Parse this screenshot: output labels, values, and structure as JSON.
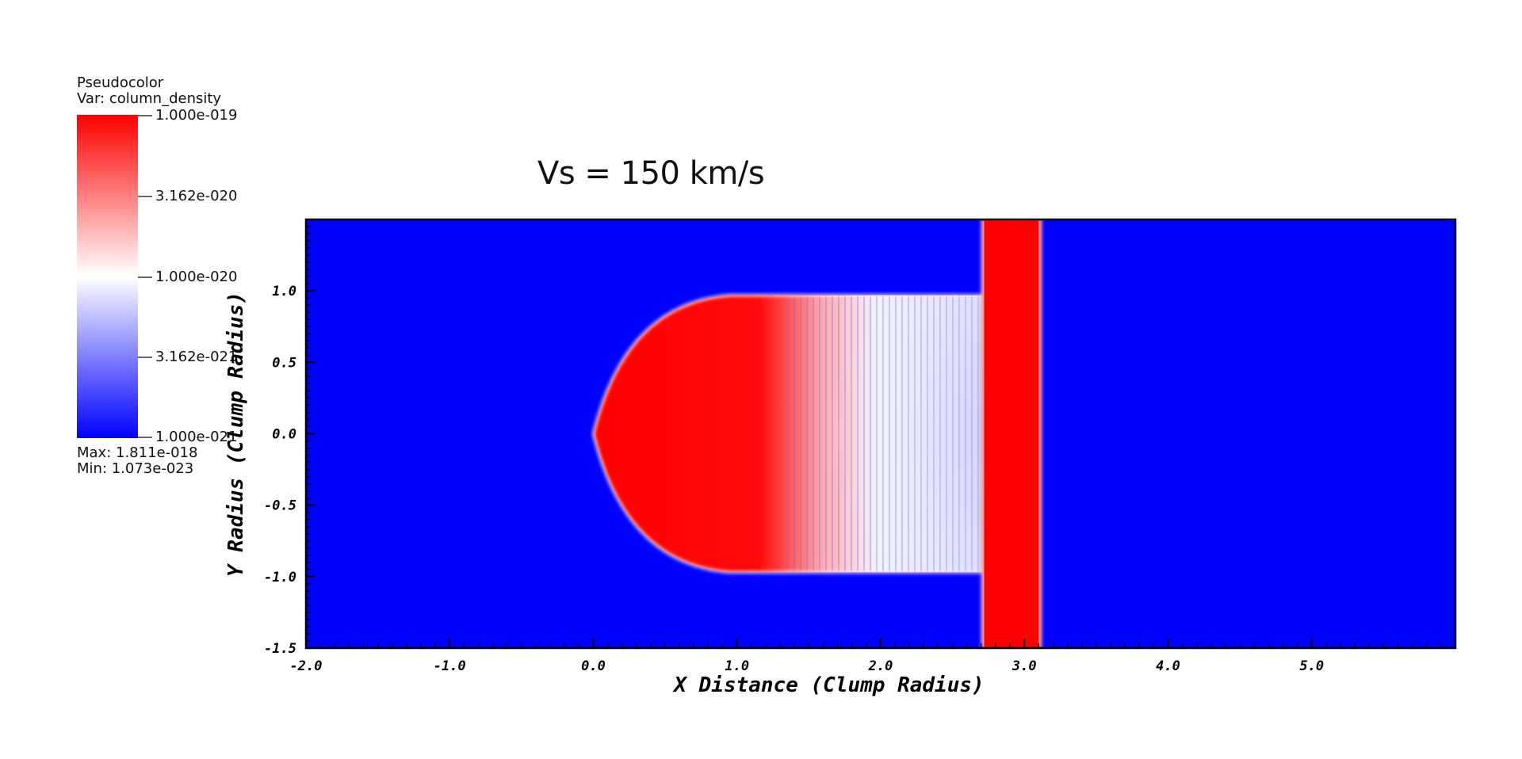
{
  "legend": {
    "title": "Pseudocolor",
    "var": "Var: column_density",
    "ticks": [
      "1.000e-019",
      "3.162e-020",
      "1.000e-020",
      "3.162e-021",
      "1.000e-021"
    ],
    "max": "Max:  1.811e-018",
    "min": "Min:  1.073e-023",
    "colors": {
      "high": "#ff0000",
      "mid": "#ffffff",
      "low": "#0000ff"
    }
  },
  "chart_data": {
    "type": "heatmap",
    "title": "Vs = 150 km/s",
    "xlabel": "X Distance (Clump Radius)",
    "ylabel": "Y Radius (Clump Radius)",
    "xlim": [
      -2.0,
      6.0
    ],
    "ylim": [
      -1.5,
      1.5
    ],
    "xticks": [
      "-2.0",
      "-1.0",
      "0.0",
      "1.0",
      "2.0",
      "3.0",
      "4.0",
      "5.0"
    ],
    "xtick_values": [
      -2,
      -1,
      0,
      1,
      2,
      3,
      4,
      5
    ],
    "yticks": [
      "1.0",
      "0.5",
      "0.0",
      "-0.5",
      "-1.0",
      "-1.5"
    ],
    "ytick_values": [
      1.0,
      0.5,
      0.0,
      -0.5,
      -1.0,
      -1.5
    ],
    "colorbar_range": [
      1e-21,
      1e-19
    ],
    "colorbar_scale": "log",
    "background_color": "#0000ff",
    "features": {
      "clump_front_x": 0.0,
      "clump_halfwidth_y": 0.97,
      "clump_tail_x": 2.75,
      "shock_band_x": [
        2.72,
        3.1
      ]
    }
  }
}
